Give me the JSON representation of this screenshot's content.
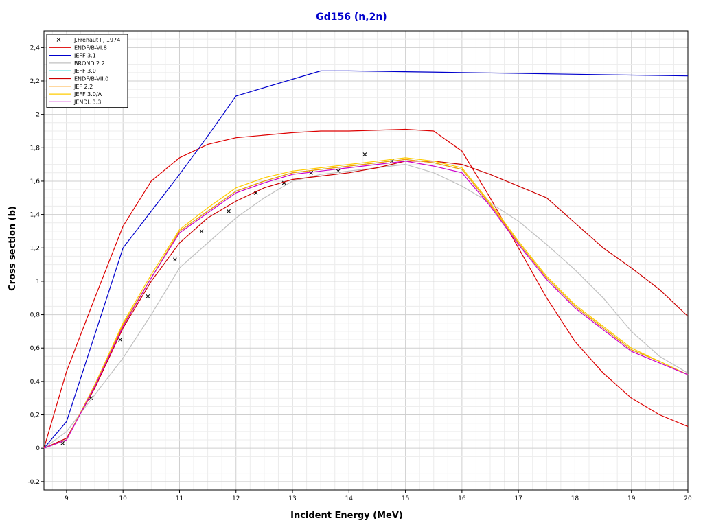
{
  "chart_data": {
    "type": "line",
    "title": "Gd156 (n,2n)",
    "title_color": "#0000cc",
    "xlabel": "Incident Energy (MeV)",
    "ylabel": "Cross section (b)",
    "xlim": [
      8.6,
      20
    ],
    "ylim": [
      -0.25,
      2.5
    ],
    "x_ticks": [
      9,
      10,
      11,
      12,
      13,
      14,
      15,
      16,
      17,
      18,
      19,
      20
    ],
    "x_tick_labels": [
      "9",
      "10",
      "11",
      "12",
      "13",
      "14",
      "15",
      "16",
      "17",
      "18",
      "19",
      "20"
    ],
    "y_ticks": [
      -0.2,
      0,
      0.2,
      0.4,
      0.6,
      0.8,
      1,
      1.2,
      1.4,
      1.6,
      1.8,
      2,
      2.2,
      2.4
    ],
    "y_tick_labels": [
      "-0,2",
      "0",
      "0,2",
      "0,4",
      "0,6",
      "0,8",
      "1",
      "1,2",
      "1,4",
      "1,6",
      "1,8",
      "2",
      "2,2",
      "2,4"
    ],
    "grid": true,
    "legend_position": "top-left",
    "series": [
      {
        "name": "J.Frehaut+, 1974",
        "kind": "scatter",
        "color": "#000000",
        "x": [
          8.93,
          9.43,
          9.95,
          10.44,
          10.92,
          11.39,
          11.87,
          12.35,
          12.85,
          13.33,
          13.81,
          14.28,
          14.76
        ],
        "y": [
          0.03,
          0.3,
          0.65,
          0.91,
          1.13,
          1.3,
          1.42,
          1.53,
          1.59,
          1.65,
          1.66,
          1.76,
          1.72
        ]
      },
      {
        "name": "ENDF/B-VI.8",
        "kind": "line",
        "color": "#dd0000",
        "x": [
          8.6,
          9,
          9.5,
          10,
          10.5,
          11,
          11.5,
          12,
          13,
          13.5,
          14,
          15,
          15.5,
          16,
          16.5,
          17,
          17.5,
          18,
          18.5,
          19,
          19.5,
          20
        ],
        "y": [
          0,
          0.46,
          0.9,
          1.33,
          1.6,
          1.74,
          1.82,
          1.86,
          1.89,
          1.9,
          1.9,
          1.91,
          1.9,
          1.78,
          1.5,
          1.2,
          0.9,
          0.64,
          0.45,
          0.3,
          0.2,
          0.13
        ]
      },
      {
        "name": "JEFF 3.1",
        "kind": "line",
        "color": "#0000cc",
        "x": [
          8.6,
          9,
          9.5,
          10,
          10.5,
          11,
          11.5,
          12,
          12.5,
          13,
          13.5,
          14,
          15,
          16,
          17,
          18,
          19,
          20
        ],
        "y": [
          0,
          0.16,
          0.68,
          1.2,
          1.42,
          1.64,
          1.87,
          2.11,
          2.16,
          2.21,
          2.26,
          2.26,
          2.255,
          2.25,
          2.245,
          2.24,
          2.235,
          2.23
        ]
      },
      {
        "name": "BROND 2.2",
        "kind": "line",
        "color": "#c0c0c0",
        "x": [
          8.6,
          9,
          9.5,
          10,
          10.5,
          11,
          11.5,
          12,
          12.5,
          13,
          13.5,
          14,
          14.5,
          15,
          15.5,
          16,
          16.5,
          17,
          17.5,
          18,
          18.5,
          19,
          19.5,
          20
        ],
        "y": [
          0,
          0.1,
          0.32,
          0.54,
          0.8,
          1.08,
          1.23,
          1.38,
          1.5,
          1.6,
          1.64,
          1.66,
          1.68,
          1.7,
          1.65,
          1.57,
          1.47,
          1.36,
          1.22,
          1.07,
          0.9,
          0.7,
          0.55,
          0.45
        ]
      },
      {
        "name": "JEFF 3.0",
        "kind": "line",
        "color": "#00cccc",
        "x": [
          8.6,
          9,
          9.5,
          10,
          10.5,
          11,
          11.5,
          12,
          12.5,
          13,
          13.5,
          14,
          14.5,
          15,
          15.5,
          16,
          16.5,
          17,
          17.5,
          18,
          18.5,
          19,
          19.5,
          20
        ],
        "y": [
          0,
          0.05,
          0.38,
          0.74,
          1.02,
          1.3,
          1.42,
          1.54,
          1.6,
          1.65,
          1.67,
          1.69,
          1.71,
          1.73,
          1.71,
          1.67,
          1.46,
          1.23,
          1.02,
          0.85,
          0.72,
          0.59,
          0.52,
          0.44
        ]
      },
      {
        "name": "ENDF/B-VII.0",
        "kind": "line",
        "color": "#cc0000",
        "x": [
          8.6,
          9,
          9.5,
          10,
          10.5,
          11,
          11.5,
          12,
          12.5,
          13,
          13.5,
          14,
          14.5,
          15,
          15.5,
          16,
          16.5,
          17,
          17.5,
          18,
          18.5,
          19,
          19.5,
          20
        ],
        "y": [
          0,
          0.06,
          0.36,
          0.72,
          1.0,
          1.23,
          1.38,
          1.48,
          1.56,
          1.61,
          1.63,
          1.65,
          1.68,
          1.72,
          1.72,
          1.7,
          1.64,
          1.57,
          1.5,
          1.35,
          1.2,
          1.08,
          0.95,
          0.79
        ]
      },
      {
        "name": "JEF 2.2",
        "kind": "line",
        "color": "#ff9900",
        "x": [
          8.6,
          9,
          9.5,
          10,
          10.5,
          11,
          11.5,
          12,
          12.5,
          13,
          13.5,
          14,
          14.5,
          15,
          15.5,
          16,
          16.5,
          17,
          17.5,
          18,
          18.5,
          19,
          19.5,
          20
        ],
        "y": [
          0,
          0.05,
          0.38,
          0.74,
          1.02,
          1.3,
          1.42,
          1.54,
          1.6,
          1.65,
          1.67,
          1.69,
          1.71,
          1.73,
          1.71,
          1.67,
          1.46,
          1.23,
          1.02,
          0.85,
          0.72,
          0.59,
          0.52,
          0.44
        ]
      },
      {
        "name": "JEFF 3.0/A",
        "kind": "line",
        "color": "#ffcc00",
        "x": [
          8.6,
          9,
          9.5,
          10,
          10.5,
          11,
          11.5,
          12,
          12.5,
          13,
          13.5,
          14,
          14.5,
          15,
          15.5,
          16,
          16.5,
          17,
          17.5,
          18,
          18.5,
          19,
          19.5,
          20
        ],
        "y": [
          0,
          0.05,
          0.38,
          0.75,
          1.04,
          1.31,
          1.44,
          1.56,
          1.62,
          1.66,
          1.68,
          1.7,
          1.72,
          1.74,
          1.72,
          1.68,
          1.47,
          1.24,
          1.03,
          0.86,
          0.73,
          0.6,
          0.52,
          0.44
        ]
      },
      {
        "name": "JENDL 3.3",
        "kind": "line",
        "color": "#cc00cc",
        "x": [
          8.6,
          9,
          9.5,
          10,
          10.5,
          11,
          11.5,
          12,
          12.5,
          13,
          13.5,
          14,
          14.5,
          15,
          15.5,
          16,
          16.5,
          17,
          17.5,
          18,
          18.5,
          19,
          19.5,
          20
        ],
        "y": [
          0,
          0.05,
          0.37,
          0.73,
          1.02,
          1.29,
          1.41,
          1.53,
          1.59,
          1.64,
          1.66,
          1.68,
          1.7,
          1.72,
          1.69,
          1.65,
          1.45,
          1.22,
          1.01,
          0.84,
          0.71,
          0.58,
          0.51,
          0.44
        ]
      }
    ]
  }
}
